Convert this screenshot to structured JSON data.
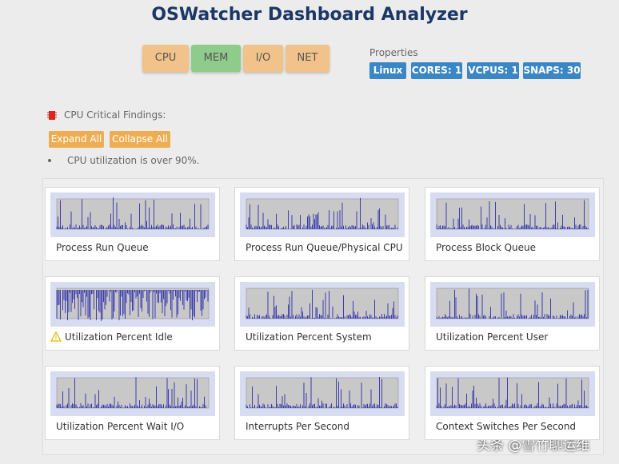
{
  "header": {
    "title": "OSWatcher Dashboard Analyzer"
  },
  "nav": {
    "buttons": [
      "CPU",
      "MEM",
      "I/O",
      "NET"
    ]
  },
  "properties": {
    "label": "Properties",
    "badges": [
      "Linux",
      "CORES: 1",
      "VCPUS: 1",
      "SNAPS: 30"
    ]
  },
  "findings": {
    "title": "CPU Critical Findings:",
    "expand": "Expand All",
    "collapse": "Collapse All",
    "items": [
      "CPU utilization is over 90%."
    ]
  },
  "charts": [
    {
      "title": "Process Run Queue"
    },
    {
      "title": "Process Run Queue/Physical CPU"
    },
    {
      "title": "Process Block Queue"
    },
    {
      "title": "Utilization Percent Idle",
      "warning": true
    },
    {
      "title": "Utilization Percent System"
    },
    {
      "title": "Utilization Percent User"
    },
    {
      "title": "Utilization Percent Wait I/O"
    },
    {
      "title": "Interrupts Per Second"
    },
    {
      "title": "Context Switches Per Second"
    }
  ],
  "watermark": "头条 @雪竹聊运维"
}
